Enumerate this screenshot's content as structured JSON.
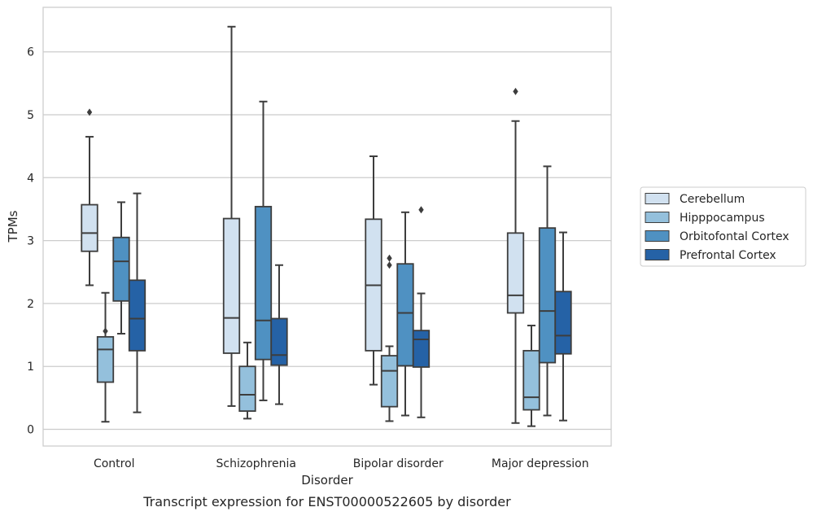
{
  "caption": "Transcript expression for ENST00000522605 by disorder",
  "colors": {
    "series": [
      "#d1e1f0",
      "#94c0dc",
      "#4f91c2",
      "#2562a6"
    ],
    "median_line": "#3d3d3d",
    "whisker": "#3d3d3d",
    "grid": "#cccccc",
    "frame": "#cccccc"
  },
  "chart_data": {
    "type": "box",
    "xlabel": "Disorder",
    "ylabel": "TPMs",
    "ylim": [
      -0.27,
      6.7
    ],
    "yticks": [
      0,
      1,
      2,
      3,
      4,
      5,
      6
    ],
    "grid": "horizontal",
    "legend_position": "right",
    "categories": [
      "Control",
      "Schizophrenia",
      "Bipolar disorder",
      "Major depression"
    ],
    "series": [
      {
        "name": "Cerebellum",
        "boxes": [
          {
            "whislo": 2.29,
            "q1": 2.83,
            "med": 3.12,
            "q3": 3.57,
            "whishi": 4.65,
            "fliers": [
              5.04
            ]
          },
          {
            "whislo": 0.37,
            "q1": 1.21,
            "med": 1.77,
            "q3": 3.35,
            "whishi": 6.4,
            "fliers": []
          },
          {
            "whislo": 0.71,
            "q1": 1.25,
            "med": 2.29,
            "q3": 3.34,
            "whishi": 4.34,
            "fliers": []
          },
          {
            "whislo": 0.1,
            "q1": 1.85,
            "med": 2.13,
            "q3": 3.12,
            "whishi": 4.9,
            "fliers": [
              5.37
            ]
          }
        ]
      },
      {
        "name": "Hipppocampus",
        "boxes": [
          {
            "whislo": 0.12,
            "q1": 0.75,
            "med": 1.27,
            "q3": 1.47,
            "whishi": 2.17,
            "fliers": [
              1.56
            ]
          },
          {
            "whislo": 0.17,
            "q1": 0.29,
            "med": 0.55,
            "q3": 1.0,
            "whishi": 1.38,
            "fliers": []
          },
          {
            "whislo": 0.13,
            "q1": 0.36,
            "med": 0.93,
            "q3": 1.17,
            "whishi": 1.32,
            "fliers": [
              2.61,
              2.72
            ]
          },
          {
            "whislo": 0.05,
            "q1": 0.31,
            "med": 0.51,
            "q3": 1.25,
            "whishi": 1.65,
            "fliers": []
          }
        ]
      },
      {
        "name": "Orbitofontal Cortex",
        "boxes": [
          {
            "whislo": 1.52,
            "q1": 2.04,
            "med": 2.67,
            "q3": 3.05,
            "whishi": 3.61,
            "fliers": []
          },
          {
            "whislo": 0.46,
            "q1": 1.11,
            "med": 1.73,
            "q3": 3.54,
            "whishi": 5.21,
            "fliers": []
          },
          {
            "whislo": 0.22,
            "q1": 1.01,
            "med": 1.85,
            "q3": 2.63,
            "whishi": 3.45,
            "fliers": []
          },
          {
            "whislo": 0.22,
            "q1": 1.06,
            "med": 1.88,
            "q3": 3.2,
            "whishi": 4.18,
            "fliers": []
          }
        ]
      },
      {
        "name": "Prefrontal Cortex",
        "boxes": [
          {
            "whislo": 0.27,
            "q1": 1.25,
            "med": 1.76,
            "q3": 2.37,
            "whishi": 3.75,
            "fliers": []
          },
          {
            "whislo": 0.4,
            "q1": 1.02,
            "med": 1.18,
            "q3": 1.76,
            "whishi": 2.61,
            "fliers": []
          },
          {
            "whislo": 0.19,
            "q1": 0.99,
            "med": 1.43,
            "q3": 1.57,
            "whishi": 2.16,
            "fliers": [
              3.49
            ]
          },
          {
            "whislo": 0.14,
            "q1": 1.2,
            "med": 1.49,
            "q3": 2.19,
            "whishi": 3.13,
            "fliers": []
          }
        ]
      }
    ]
  }
}
